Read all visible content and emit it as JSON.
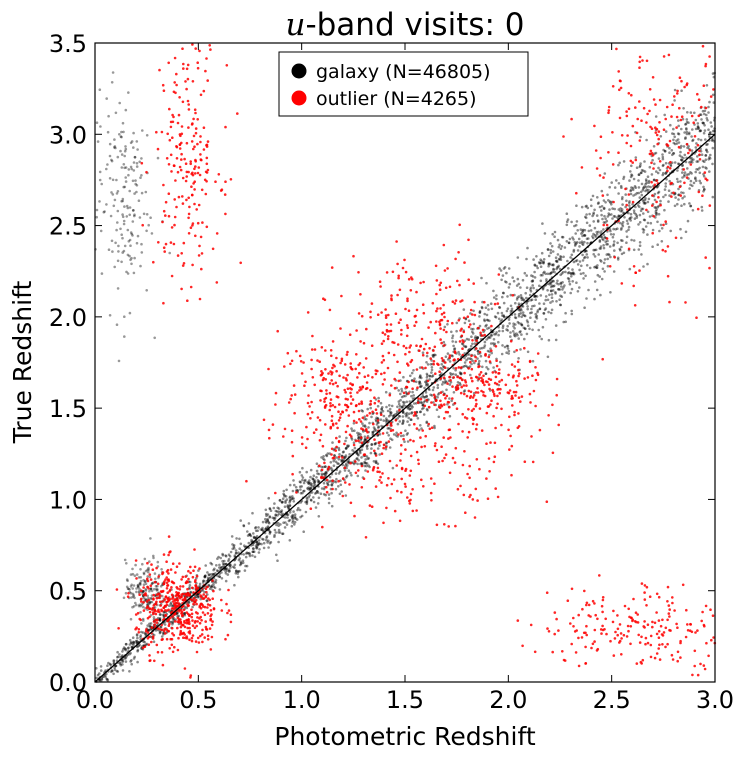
{
  "chart_data": {
    "type": "scatter",
    "title_var": "u",
    "title_rest": "-band visits: 0",
    "xlabel": "Photometric Redshift",
    "ylabel": "True Redshift",
    "xlim": [
      0.0,
      3.0
    ],
    "ylim": [
      0.0,
      3.5
    ],
    "xticks": [
      "0.0",
      "0.5",
      "1.0",
      "1.5",
      "2.0",
      "2.5",
      "3.0"
    ],
    "yticks": [
      "0.0",
      "0.5",
      "1.0",
      "1.5",
      "2.0",
      "2.5",
      "3.0",
      "3.5"
    ],
    "grid": false,
    "legend_position": "top-center",
    "reference_line": {
      "x": [
        0.0,
        3.0
      ],
      "y": [
        0.0,
        3.0
      ]
    },
    "series": [
      {
        "name": "galaxy (N=46805)",
        "color": "#000000",
        "clusters": [
          {
            "desc": "main diagonal",
            "x": [
              0.0,
              3.0
            ],
            "y_equals_x": true
          },
          {
            "x_center": 0.13,
            "y_center": 2.65,
            "x_spread": 0.07,
            "y_spread": 0.3
          },
          {
            "x_center": 0.25,
            "y_center": 0.5,
            "x_spread": 0.05,
            "y_spread": 0.08
          }
        ]
      },
      {
        "name": "outlier (N=4265)",
        "color": "#ff0000",
        "clusters": [
          {
            "x_center": 0.4,
            "y_center": 0.4,
            "x_spread": 0.1,
            "y_spread": 0.12
          },
          {
            "x_center": 0.45,
            "y_center": 2.9,
            "x_spread": 0.08,
            "y_spread": 0.35
          },
          {
            "x_center": 1.6,
            "y_center": 1.95,
            "x_spread": 0.2,
            "y_spread": 0.2
          },
          {
            "x_center": 1.85,
            "y_center": 1.6,
            "x_spread": 0.15,
            "y_spread": 0.12
          },
          {
            "x_center": 1.5,
            "y_center": 1.2,
            "x_spread": 0.3,
            "y_spread": 0.15
          },
          {
            "x_center": 2.65,
            "y_center": 0.3,
            "x_spread": 0.25,
            "y_spread": 0.12
          },
          {
            "x_center": 2.7,
            "y_center": 2.9,
            "x_spread": 0.2,
            "y_spread": 0.35
          },
          {
            "x_center": 1.2,
            "y_center": 1.6,
            "x_spread": 0.15,
            "y_spread": 0.15
          }
        ]
      }
    ]
  }
}
